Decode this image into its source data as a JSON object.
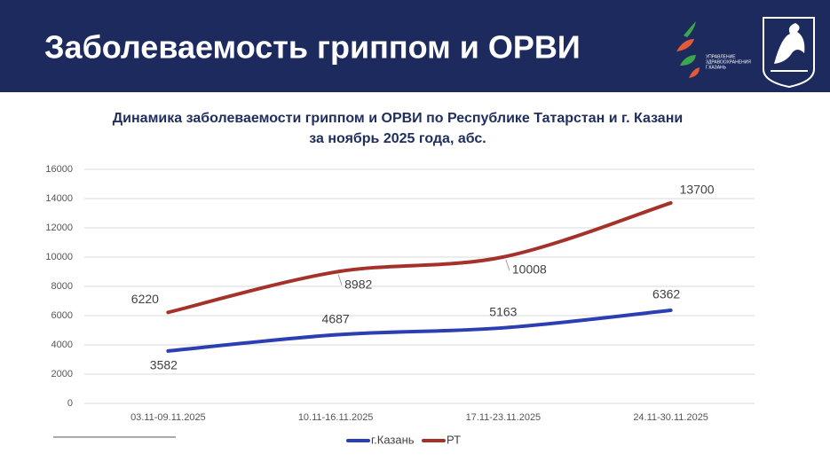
{
  "header": {
    "title": "Заболеваемость гриппом и ОРВИ",
    "logo_text": [
      "УПРАВЛЕНИЕ",
      "ЗДРАВООХРАНЕНИЯ",
      "Г.КАЗАНЬ"
    ]
  },
  "chart_data": {
    "type": "line",
    "title": [
      "Динамика заболеваемости гриппом и ОРВИ по Республике Татарстан и г. Казани",
      "за ноябрь 2025 года, абс."
    ],
    "categories": [
      "03.11-09.11.2025",
      "10.11-16.11.2025",
      "17.11-23.11.2025",
      "24.11-30.11.2025"
    ],
    "series": [
      {
        "name": "г.Казань",
        "color": "#2b3fb3",
        "values": [
          3582,
          4687,
          5163,
          6362
        ]
      },
      {
        "name": "РТ",
        "color": "#a5322a",
        "values": [
          6220,
          8982,
          10008,
          13700
        ]
      }
    ],
    "ylim": [
      0,
      16000
    ],
    "yticks": [
      0,
      2000,
      4000,
      6000,
      8000,
      10000,
      12000,
      14000,
      16000
    ],
    "grid": true,
    "legend": "bottom"
  }
}
